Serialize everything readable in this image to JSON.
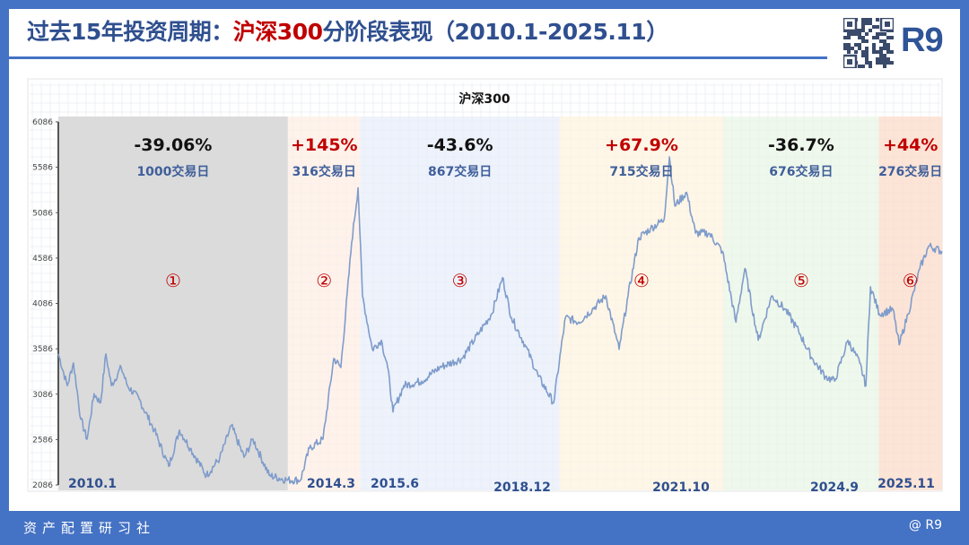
{
  "header": {
    "title_prefix": "过去15年投资周期：",
    "title_highlight": "沪深300",
    "title_suffix": "分阶段表现（2010.1-2025.11）",
    "brand": "R9",
    "qr_icon": "qr-code-icon"
  },
  "footer": {
    "left": "资产配置研习社",
    "right": "@ R9"
  },
  "colors": {
    "accent": "#4472c4",
    "title": "#2f4f8f",
    "highlight": "#c00000",
    "line": "#7f9ccb",
    "day_label": "#3f5f9a"
  },
  "chart_data": {
    "type": "line",
    "title": "沪深300",
    "xlabel": "",
    "ylabel": "",
    "ylim": [
      2086,
      6086
    ],
    "yticks": [
      "2086",
      "2586",
      "3086",
      "3586",
      "4086",
      "4586",
      "5086",
      "5586",
      "6086"
    ],
    "grid": true,
    "x_unit": "trading-day index",
    "xlim": [
      0,
      3850
    ],
    "phases": [
      {
        "num": "①",
        "change": "-39.06%",
        "days": "1000交易日",
        "trading_days": 1000,
        "color": "#d9d9d9",
        "change_color": "#111111"
      },
      {
        "num": "②",
        "change": "+145%",
        "days": "316交易日",
        "trading_days": 316,
        "color": "#fdeee4",
        "change_color": "#c00000"
      },
      {
        "num": "③",
        "change": "-43.6%",
        "days": "867交易日",
        "trading_days": 867,
        "color": "#e7eefa",
        "change_color": "#111111"
      },
      {
        "num": "④",
        "change": "+67.9%",
        "days": "715交易日",
        "trading_days": 715,
        "color": "#fdf3df",
        "change_color": "#c00000"
      },
      {
        "num": "⑤",
        "change": "-36.7%",
        "days": "676交易日",
        "trading_days": 676,
        "color": "#e9f5e6",
        "change_color": "#111111"
      },
      {
        "num": "⑥",
        "change": "+44%",
        "days": "276交易日",
        "trading_days": 276,
        "color": "#fbdcca",
        "change_color": "#c00000"
      }
    ],
    "date_labels": [
      "2010.1",
      "2014.3",
      "2015.6",
      "2018.12",
      "2021.10",
      "2024.9",
      "2025.11"
    ],
    "series": [
      {
        "name": "沪深300",
        "points": [
          [
            0,
            3530
          ],
          [
            39,
            3180
          ],
          [
            66,
            3430
          ],
          [
            98,
            2810
          ],
          [
            125,
            2590
          ],
          [
            156,
            3090
          ],
          [
            184,
            2990
          ],
          [
            207,
            3530
          ],
          [
            231,
            3180
          ],
          [
            274,
            3380
          ],
          [
            301,
            3180
          ],
          [
            352,
            3030
          ],
          [
            418,
            2690
          ],
          [
            481,
            2290
          ],
          [
            528,
            2690
          ],
          [
            575,
            2490
          ],
          [
            645,
            2190
          ],
          [
            703,
            2380
          ],
          [
            754,
            2740
          ],
          [
            809,
            2390
          ],
          [
            848,
            2590
          ],
          [
            919,
            2190
          ],
          [
            997,
            2140
          ],
          [
            1055,
            2140
          ],
          [
            1094,
            2490
          ],
          [
            1153,
            2590
          ],
          [
            1200,
            3480
          ],
          [
            1231,
            3380
          ],
          [
            1278,
            4760
          ],
          [
            1306,
            5360
          ],
          [
            1325,
            4170
          ],
          [
            1368,
            3580
          ],
          [
            1407,
            3680
          ],
          [
            1435,
            3380
          ],
          [
            1458,
            2890
          ],
          [
            1505,
            3180
          ],
          [
            1583,
            3230
          ],
          [
            1661,
            3380
          ],
          [
            1759,
            3480
          ],
          [
            1837,
            3780
          ],
          [
            1888,
            3970
          ],
          [
            1935,
            4370
          ],
          [
            1974,
            3930
          ],
          [
            2033,
            3630
          ],
          [
            2092,
            3280
          ],
          [
            2158,
            2990
          ],
          [
            2209,
            3930
          ],
          [
            2267,
            3880
          ],
          [
            2326,
            4020
          ],
          [
            2385,
            4170
          ],
          [
            2443,
            3580
          ],
          [
            2482,
            4170
          ],
          [
            2529,
            4810
          ],
          [
            2580,
            4910
          ],
          [
            2639,
            5010
          ],
          [
            2662,
            5700
          ],
          [
            2686,
            5160
          ],
          [
            2737,
            5310
          ],
          [
            2776,
            4860
          ],
          [
            2834,
            4860
          ],
          [
            2893,
            4660
          ],
          [
            2952,
            3880
          ],
          [
            2991,
            4470
          ],
          [
            3049,
            3680
          ],
          [
            3108,
            4170
          ],
          [
            3167,
            4020
          ],
          [
            3225,
            3780
          ],
          [
            3284,
            3480
          ],
          [
            3342,
            3280
          ],
          [
            3382,
            3230
          ],
          [
            3440,
            3680
          ],
          [
            3491,
            3430
          ],
          [
            3518,
            3180
          ],
          [
            3538,
            4270
          ],
          [
            3577,
            3970
          ],
          [
            3636,
            4020
          ],
          [
            3663,
            3630
          ],
          [
            3702,
            3970
          ],
          [
            3753,
            4470
          ],
          [
            3792,
            4720
          ],
          [
            3850,
            4660
          ]
        ]
      }
    ]
  }
}
